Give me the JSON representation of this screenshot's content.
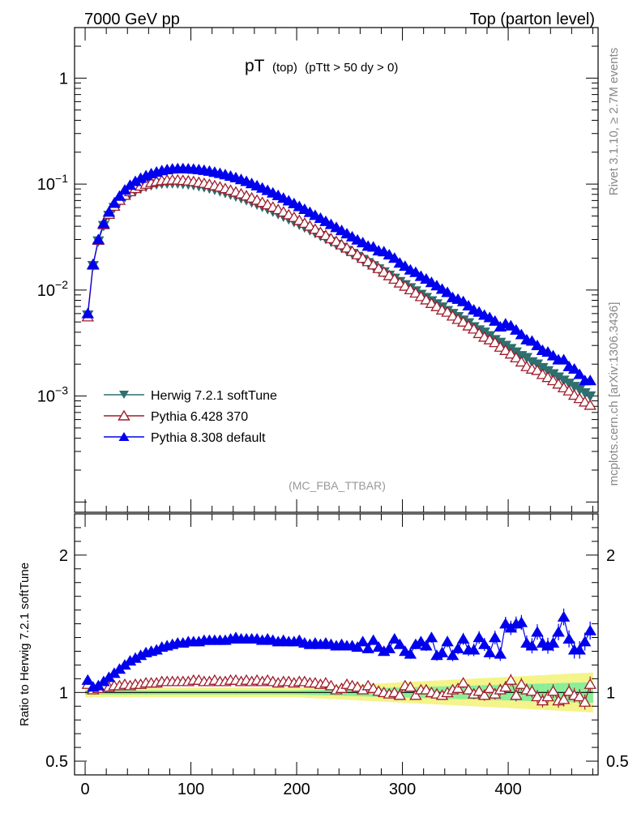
{
  "header": {
    "left": "7000 GeV pp",
    "right": "Top (parton level)"
  },
  "title": {
    "main": "pT",
    "sub1": "(top)",
    "sub2": "(pTtt > 50 dy > 0)"
  },
  "side_labels": {
    "rivet": "Rivet 3.1.10, ≥ 2.7M events",
    "mcplots": "mcplots.cern.ch [arXiv:1306.3436]"
  },
  "analysis_tag": "(MC_FBA_TTBAR)",
  "ratio_ylabel": "Ratio to Herwig 7.2.1 softTune",
  "chart_data": [
    {
      "type": "scatter",
      "panel": "main",
      "yscale": "log",
      "xlim": [
        -10,
        485
      ],
      "ylim": [
        8e-05,
        3
      ],
      "ytick_labels": [
        {
          "value": 1,
          "label": "1"
        },
        {
          "value": 0.1,
          "label": "10^-1"
        },
        {
          "value": 0.01,
          "label": "10^-2"
        },
        {
          "value": 0.001,
          "label": "10^-3"
        }
      ],
      "x": [
        2.5,
        7.5,
        12.5,
        17.5,
        22.5,
        27.5,
        32.5,
        37.5,
        42.5,
        47.5,
        52.5,
        57.5,
        62.5,
        67.5,
        72.5,
        77.5,
        82.5,
        87.5,
        92.5,
        97.5,
        102.5,
        107.5,
        112.5,
        117.5,
        122.5,
        127.5,
        132.5,
        137.5,
        142.5,
        147.5,
        152.5,
        157.5,
        162.5,
        167.5,
        172.5,
        177.5,
        182.5,
        187.5,
        192.5,
        197.5,
        202.5,
        207.5,
        212.5,
        217.5,
        222.5,
        227.5,
        232.5,
        237.5,
        242.5,
        247.5,
        252.5,
        257.5,
        262.5,
        267.5,
        272.5,
        277.5,
        282.5,
        287.5,
        292.5,
        297.5,
        302.5,
        307.5,
        312.5,
        317.5,
        322.5,
        327.5,
        332.5,
        337.5,
        342.5,
        347.5,
        352.5,
        357.5,
        362.5,
        367.5,
        372.5,
        377.5,
        382.5,
        387.5,
        392.5,
        397.5,
        402.5,
        407.5,
        412.5,
        417.5,
        422.5,
        427.5,
        432.5,
        437.5,
        442.5,
        447.5,
        452.5,
        457.5,
        462.5,
        467.5,
        472.5,
        477.5
      ],
      "series": [
        {
          "name": "Herwig 7.2.1 softTune",
          "color": "#2f6f6f",
          "marker": "triangle-down-filled",
          "values": [
            0.0058,
            0.017,
            0.029,
            0.0405,
            0.0505,
            0.06,
            0.068,
            0.0755,
            0.0815,
            0.087,
            0.0915,
            0.095,
            0.098,
            0.1,
            0.1015,
            0.102,
            0.1022,
            0.102,
            0.101,
            0.0998,
            0.0982,
            0.0962,
            0.094,
            0.0915,
            0.0888,
            0.086,
            0.083,
            0.08,
            0.077,
            0.074,
            0.0708,
            0.0676,
            0.0645,
            0.0614,
            0.0583,
            0.0553,
            0.0524,
            0.0496,
            0.0468,
            0.0442,
            0.0416,
            0.0392,
            0.0369,
            0.0347,
            0.0326,
            0.0306,
            0.0287,
            0.0269,
            0.0252,
            0.0236,
            0.0221,
            0.0207,
            0.0194,
            0.0181,
            0.0169,
            0.0158,
            0.0148,
            0.0138,
            0.0129,
            0.012,
            0.0112,
            0.0105,
            0.0098,
            0.0091,
            0.0085,
            0.0079,
            0.0074,
            0.0069,
            0.0064,
            0.006,
            0.0056,
            0.0052,
            0.0049,
            0.0045,
            0.0042,
            0.004,
            0.0037,
            0.0034,
            0.0032,
            0.003,
            0.0028,
            0.0026,
            0.0024,
            0.0023,
            0.0021,
            0.002,
            0.00185,
            0.00173,
            0.00162,
            0.00151,
            0.00141,
            0.00132,
            0.00123,
            0.00115,
            0.00107,
            0.001
          ]
        },
        {
          "name": "Pythia 6.428 370",
          "color": "#a01c2c",
          "marker": "triangle-up-open",
          "values": [
            0.0056,
            0.0172,
            0.0296,
            0.0415,
            0.052,
            0.062,
            0.0705,
            0.0785,
            0.085,
            0.091,
            0.096,
            0.1,
            0.1035,
            0.106,
            0.108,
            0.109,
            0.1095,
            0.1095,
            0.1085,
            0.1075,
            0.106,
            0.104,
            0.1018,
            0.0995,
            0.0968,
            0.094,
            0.0908,
            0.0876,
            0.0843,
            0.081,
            0.0776,
            0.0741,
            0.0707,
            0.0673,
            0.064,
            0.0607,
            0.0576,
            0.0546,
            0.0515,
            0.0486,
            0.0455,
            0.0428,
            0.0402,
            0.0376,
            0.035,
            0.0328,
            0.0306,
            0.0288,
            0.0268,
            0.025,
            0.0232,
            0.0216,
            0.02,
            0.0186,
            0.0173,
            0.016,
            0.0148,
            0.0137,
            0.0127,
            0.0117,
            0.0109,
            0.0101,
            0.0094,
            0.0087,
            0.0081,
            0.0075,
            0.007,
            0.0065,
            0.0062,
            0.0057,
            0.0053,
            0.005,
            0.0046,
            0.0043,
            0.0039,
            0.0036,
            0.0034,
            0.0032,
            0.0029,
            0.0027,
            0.0025,
            0.0023,
            0.0021,
            0.0019,
            0.0018,
            0.00175,
            0.0016,
            0.0015,
            0.0014,
            0.0013,
            0.0012,
            0.00112,
            0.00102,
            0.00095,
            0.00088,
            0.00082
          ]
        },
        {
          "name": "Pythia 8.308 default",
          "color": "#0000ee",
          "marker": "triangle-up-filled",
          "values": [
            0.006,
            0.0175,
            0.03,
            0.0425,
            0.0545,
            0.066,
            0.077,
            0.088,
            0.0975,
            0.106,
            0.1135,
            0.12,
            0.1255,
            0.13,
            0.134,
            0.137,
            0.139,
            0.14,
            0.14,
            0.1395,
            0.1385,
            0.137,
            0.135,
            0.1325,
            0.1295,
            0.1262,
            0.1228,
            0.119,
            0.115,
            0.1105,
            0.106,
            0.1012,
            0.0965,
            0.0918,
            0.0872,
            0.0826,
            0.0781,
            0.0737,
            0.0695,
            0.0655,
            0.0615,
            0.0578,
            0.0541,
            0.0507,
            0.0476,
            0.0445,
            0.0416,
            0.039,
            0.0365,
            0.034,
            0.0318,
            0.0297,
            0.028,
            0.026,
            0.0255,
            0.0235,
            0.023,
            0.0215,
            0.02,
            0.018,
            0.0168,
            0.0155,
            0.0147,
            0.0135,
            0.0127,
            0.0118,
            0.011,
            0.0102,
            0.0095,
            0.0085,
            0.0082,
            0.0078,
            0.0071,
            0.0065,
            0.0062,
            0.0058,
            0.0055,
            0.0051,
            0.0045,
            0.0048,
            0.0046,
            0.0042,
            0.0038,
            0.0034,
            0.0033,
            0.003,
            0.0027,
            0.0026,
            0.0024,
            0.0022,
            0.0022,
            0.0019,
            0.0018,
            0.0016,
            0.0014,
            0.0014
          ]
        }
      ]
    },
    {
      "type": "scatter",
      "panel": "ratio",
      "ylabel": "Ratio to Herwig 7.2.1 softTune",
      "xlim": [
        -10,
        485
      ],
      "ylim": [
        0.4,
        2.3
      ],
      "yticks": [
        0.5,
        1,
        2
      ],
      "ytick_labels": [
        "0.5",
        "1",
        "2"
      ],
      "xticks": [
        0,
        100,
        200,
        300,
        400
      ],
      "xtick_labels": [
        "0",
        "100",
        "200",
        "300",
        "400"
      ],
      "reference_line": 1,
      "band_inner_color": "#88ee99",
      "band_outer_color": "#f4f48a",
      "series": [
        {
          "name": "Pythia 6.428 370",
          "color": "#a01c2c",
          "marker": "triangle-up-open",
          "values": [
            1.06,
            1.02,
            1.03,
            1.05,
            1.04,
            1.05,
            1.05,
            1.06,
            1.05,
            1.06,
            1.06,
            1.07,
            1.07,
            1.07,
            1.08,
            1.08,
            1.08,
            1.08,
            1.08,
            1.08,
            1.09,
            1.09,
            1.08,
            1.08,
            1.09,
            1.08,
            1.08,
            1.09,
            1.09,
            1.08,
            1.09,
            1.08,
            1.09,
            1.08,
            1.09,
            1.08,
            1.07,
            1.08,
            1.08,
            1.07,
            1.08,
            1.08,
            1.07,
            1.07,
            1.06,
            1.07,
            1.05,
            1.02,
            1.03,
            1.06,
            1.05,
            1.04,
            1.02,
            1.05,
            1.03,
            1.01,
            1.0,
            0.99,
            1.0,
            0.98,
            1.05,
            1.04,
            0.98,
            1.02,
            1.02,
            1.0,
            0.99,
            0.98,
            1.0,
            1.02,
            1.03,
            1.07,
            1.02,
            0.99,
            1.01,
            0.98,
            1.03,
            0.99,
            1.02,
            1.04,
            1.09,
            0.98,
            1.06,
            1.02,
            1.01,
            0.97,
            0.94,
            0.97,
            1.01,
            0.94,
            0.95,
            1.01,
            0.98,
            0.97,
            0.93,
            1.06
          ]
        },
        {
          "name": "Pythia 8.308 default",
          "color": "#0000ee",
          "marker": "triangle-up-filled",
          "values": [
            1.09,
            1.04,
            1.05,
            1.08,
            1.11,
            1.14,
            1.17,
            1.2,
            1.23,
            1.25,
            1.27,
            1.29,
            1.3,
            1.31,
            1.33,
            1.34,
            1.35,
            1.36,
            1.36,
            1.37,
            1.37,
            1.37,
            1.38,
            1.38,
            1.38,
            1.38,
            1.38,
            1.39,
            1.4,
            1.39,
            1.39,
            1.39,
            1.39,
            1.38,
            1.39,
            1.38,
            1.37,
            1.38,
            1.37,
            1.37,
            1.38,
            1.36,
            1.35,
            1.36,
            1.35,
            1.36,
            1.35,
            1.34,
            1.35,
            1.34,
            1.34,
            1.33,
            1.37,
            1.32,
            1.38,
            1.33,
            1.3,
            1.32,
            1.39,
            1.35,
            1.3,
            1.28,
            1.35,
            1.37,
            1.34,
            1.4,
            1.27,
            1.29,
            1.37,
            1.27,
            1.32,
            1.39,
            1.31,
            1.31,
            1.4,
            1.35,
            1.29,
            1.4,
            1.28,
            1.5,
            1.47,
            1.5,
            1.51,
            1.36,
            1.34,
            1.44,
            1.36,
            1.34,
            1.36,
            1.44,
            1.55,
            1.39,
            1.31,
            1.31,
            1.37,
            1.45
          ]
        }
      ]
    }
  ]
}
